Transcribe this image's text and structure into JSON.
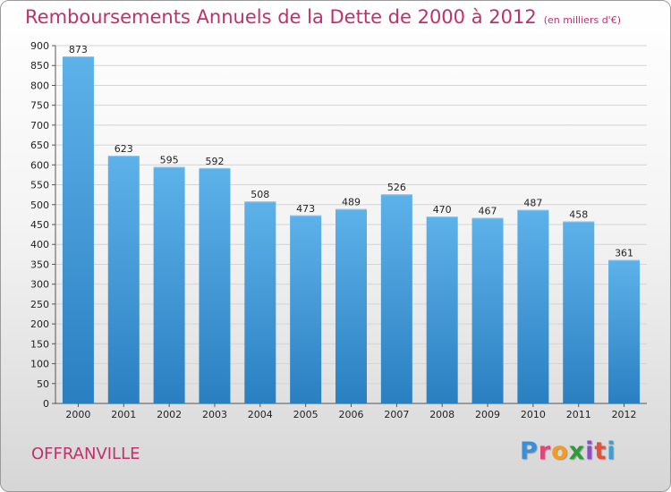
{
  "header": {
    "title": "Remboursements Annuels de la Dette de 2000 à 2012",
    "unit": "(en milliers d'€)"
  },
  "footer": {
    "city": "OFFRANVILLE",
    "logo_letters": [
      "P",
      "r",
      "o",
      "x",
      "i",
      "t",
      "i"
    ]
  },
  "chart_data": {
    "type": "bar",
    "categories": [
      "2000",
      "2001",
      "2002",
      "2003",
      "2004",
      "2005",
      "2006",
      "2007",
      "2008",
      "2009",
      "2010",
      "2011",
      "2012"
    ],
    "values": [
      873,
      623,
      595,
      592,
      508,
      473,
      489,
      526,
      470,
      467,
      487,
      458,
      361
    ],
    "ylim": [
      0,
      900
    ],
    "yticks": [
      0,
      50,
      100,
      150,
      200,
      250,
      300,
      350,
      400,
      450,
      500,
      550,
      600,
      650,
      700,
      750,
      800,
      850,
      900
    ],
    "grid": true,
    "bar_color_top": "#5eb2ea",
    "bar_color_bottom": "#2a7fc1"
  }
}
